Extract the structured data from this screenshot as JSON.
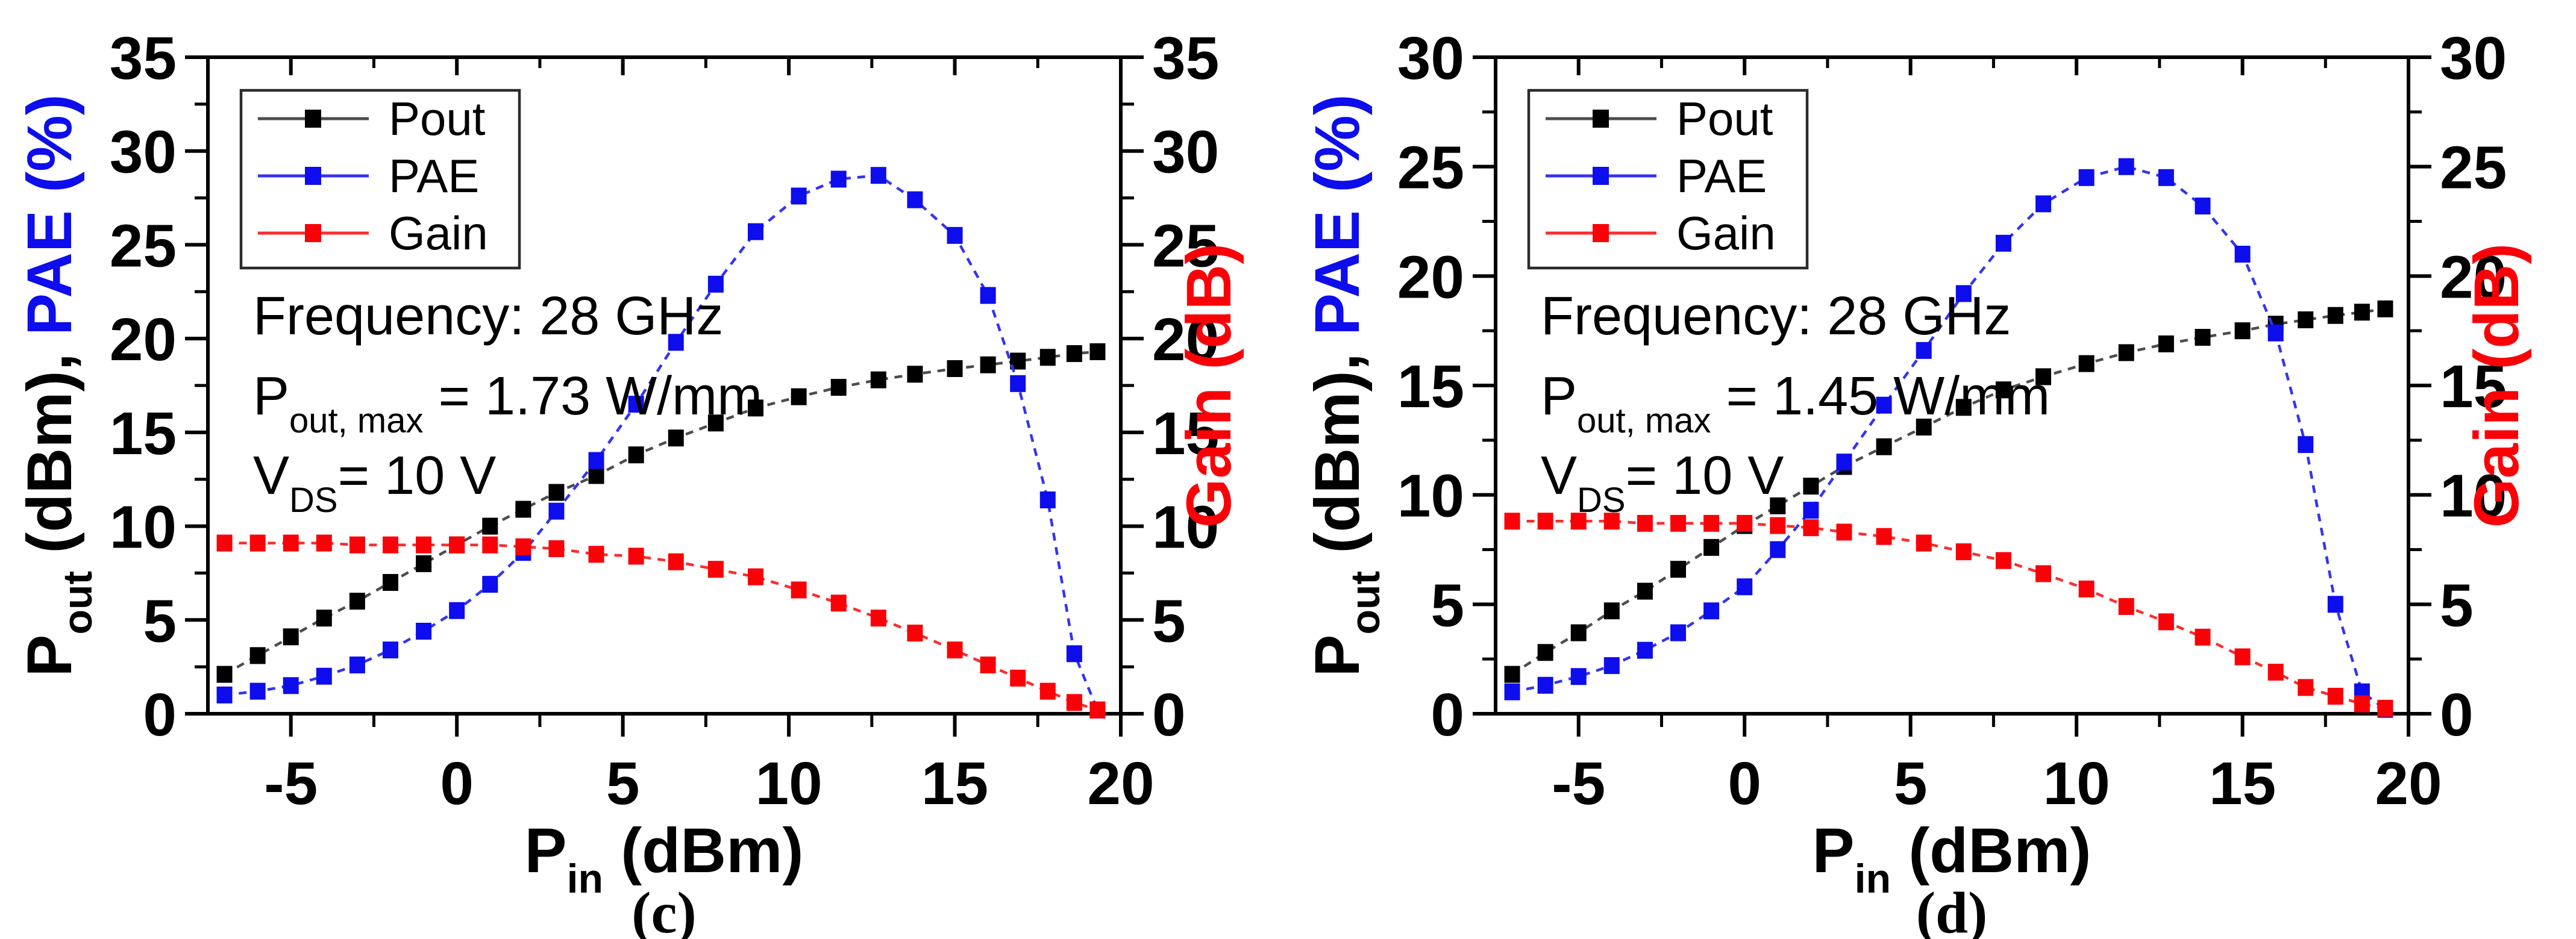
{
  "figure": {
    "background": "#ffffff",
    "description_visible_text_only": "Two-panel line chart figure"
  },
  "colors": {
    "black": "#000000",
    "blue": "#0d0dee",
    "red": "#fb0007",
    "frame": "#000000",
    "legend_border": "#2b2b2b"
  },
  "chart_data": [
    {
      "id": "c",
      "type": "line",
      "caption": "(c)",
      "xlabel_segments": [
        {
          "t": "P"
        },
        {
          "t": "in",
          "sub": true
        },
        {
          "t": " (dBm)"
        }
      ],
      "left_axis_label_segments": [
        {
          "t": "P"
        },
        {
          "t": "out",
          "sub": true
        },
        {
          "t": " (dBm), "
        },
        {
          "t": "PAE (%)",
          "color": "#0d0dee"
        }
      ],
      "right_axis_label_segments": [
        {
          "t": "Gain (dB)"
        }
      ],
      "right_axis_label_color": "#fb0007",
      "xlim": [
        -7.5,
        20
      ],
      "xticks": [
        -5,
        0,
        5,
        10,
        15,
        20
      ],
      "left_ylim": [
        0,
        35
      ],
      "left_yticks": [
        0,
        5,
        10,
        15,
        20,
        25,
        30,
        35
      ],
      "right_ylim": [
        0,
        35
      ],
      "right_yticks": [
        0,
        5,
        10,
        15,
        20,
        25,
        30,
        35
      ],
      "grid": false,
      "legend_position": "top-left-inside",
      "x": [
        -7,
        -6,
        -5,
        -4,
        -3,
        -2,
        -1,
        0,
        1,
        2,
        3,
        4.2,
        5.4,
        6.6,
        7.8,
        9,
        10.3,
        11.5,
        12.7,
        13.8,
        15,
        16,
        16.9,
        17.8,
        18.6,
        19.3
      ],
      "series": [
        {
          "name": "Pout",
          "axis": "left",
          "marker_color": "#000000",
          "line_color": "#4d4d4d",
          "values": [
            2.1,
            3.1,
            4.1,
            5.1,
            6.0,
            7.0,
            8.0,
            9.0,
            10.0,
            10.9,
            11.8,
            12.7,
            13.8,
            14.7,
            15.5,
            16.3,
            16.9,
            17.4,
            17.8,
            18.1,
            18.4,
            18.6,
            18.8,
            19.0,
            19.2,
            19.3
          ]
        },
        {
          "name": "PAE",
          "axis": "left",
          "marker_color": "#0d0dee",
          "line_color": "#3434f2",
          "values": [
            1.0,
            1.2,
            1.5,
            2.0,
            2.6,
            3.4,
            4.4,
            5.5,
            6.9,
            8.6,
            10.8,
            13.5,
            16.5,
            19.8,
            22.9,
            25.7,
            27.6,
            28.5,
            28.7,
            27.4,
            25.5,
            22.3,
            17.6,
            11.4,
            3.2,
            0.2
          ]
        },
        {
          "name": "Gain",
          "axis": "right",
          "marker_color": "#fb0007",
          "line_color": "#fb2d2d",
          "values": [
            9.1,
            9.1,
            9.1,
            9.1,
            9.0,
            9.0,
            9.0,
            9.0,
            9.0,
            8.9,
            8.8,
            8.5,
            8.4,
            8.1,
            7.7,
            7.3,
            6.6,
            5.9,
            5.1,
            4.3,
            3.4,
            2.6,
            1.9,
            1.2,
            0.6,
            0.2
          ]
        }
      ],
      "legend_entries": [
        "Pout",
        "PAE",
        "Gain"
      ],
      "annotation_lines": [
        [
          {
            "t": "Frequency: 28 GHz"
          }
        ],
        [
          {
            "t": "P"
          },
          {
            "t": "out, max",
            "sub": true
          },
          {
            "t": " = 1.73 W/mm"
          }
        ],
        [
          {
            "t": "V"
          },
          {
            "t": "DS",
            "sub": true
          },
          {
            "t": "= 10 V"
          }
        ]
      ]
    },
    {
      "id": "d",
      "type": "line",
      "caption": "(d)",
      "xlabel_segments": [
        {
          "t": "P"
        },
        {
          "t": "in",
          "sub": true
        },
        {
          "t": " (dBm)"
        }
      ],
      "left_axis_label_segments": [
        {
          "t": "P"
        },
        {
          "t": "out",
          "sub": true
        },
        {
          "t": " (dBm), "
        },
        {
          "t": "PAE (%)",
          "color": "#0d0dee"
        }
      ],
      "right_axis_label_segments": [
        {
          "t": "Gain (dB)"
        }
      ],
      "right_axis_label_color": "#fb0007",
      "xlim": [
        -7.5,
        20
      ],
      "xticks": [
        -5,
        0,
        5,
        10,
        15,
        20
      ],
      "left_ylim": [
        0,
        30
      ],
      "left_yticks": [
        0,
        5,
        10,
        15,
        20,
        25,
        30
      ],
      "right_ylim": [
        0,
        30
      ],
      "right_yticks": [
        0,
        5,
        10,
        15,
        20,
        25,
        30
      ],
      "grid": false,
      "legend_position": "top-left-inside",
      "x": [
        -7,
        -6,
        -5,
        -4,
        -3,
        -2,
        -1,
        0,
        1,
        2,
        3,
        4.2,
        5.4,
        6.6,
        7.8,
        9,
        10.3,
        11.5,
        12.7,
        13.8,
        15,
        16,
        16.9,
        17.8,
        18.6,
        19.3
      ],
      "series": [
        {
          "name": "Pout",
          "axis": "left",
          "marker_color": "#000000",
          "line_color": "#4d4d4d",
          "values": [
            1.8,
            2.8,
            3.7,
            4.7,
            5.6,
            6.6,
            7.6,
            8.6,
            9.5,
            10.4,
            11.3,
            12.2,
            13.1,
            14.0,
            14.8,
            15.4,
            16.0,
            16.5,
            16.9,
            17.2,
            17.5,
            17.8,
            18.0,
            18.2,
            18.35,
            18.5
          ]
        },
        {
          "name": "PAE",
          "axis": "left",
          "marker_color": "#0d0dee",
          "line_color": "#3434f2",
          "values": [
            1.0,
            1.3,
            1.7,
            2.2,
            2.9,
            3.7,
            4.7,
            5.8,
            7.5,
            9.3,
            11.5,
            14.1,
            16.6,
            19.2,
            21.5,
            23.3,
            24.5,
            25.0,
            24.5,
            23.2,
            21.0,
            17.4,
            12.3,
            5.0,
            1.0,
            0.2
          ]
        },
        {
          "name": "Gain",
          "axis": "right",
          "marker_color": "#fb0007",
          "line_color": "#fb2d2d",
          "values": [
            8.8,
            8.8,
            8.8,
            8.8,
            8.7,
            8.7,
            8.7,
            8.7,
            8.6,
            8.5,
            8.3,
            8.1,
            7.8,
            7.4,
            7.0,
            6.4,
            5.7,
            4.9,
            4.2,
            3.5,
            2.6,
            1.9,
            1.2,
            0.8,
            0.45,
            0.25
          ]
        }
      ],
      "legend_entries": [
        "Pout",
        "PAE",
        "Gain"
      ],
      "annotation_lines": [
        [
          {
            "t": "Frequency: 28 GHz"
          }
        ],
        [
          {
            "t": "P"
          },
          {
            "t": "out, max",
            "sub": true
          },
          {
            "t": " = 1.45 W/mm"
          }
        ],
        [
          {
            "t": "V"
          },
          {
            "t": "DS",
            "sub": true
          },
          {
            "t": "= 10 V"
          }
        ]
      ]
    }
  ]
}
